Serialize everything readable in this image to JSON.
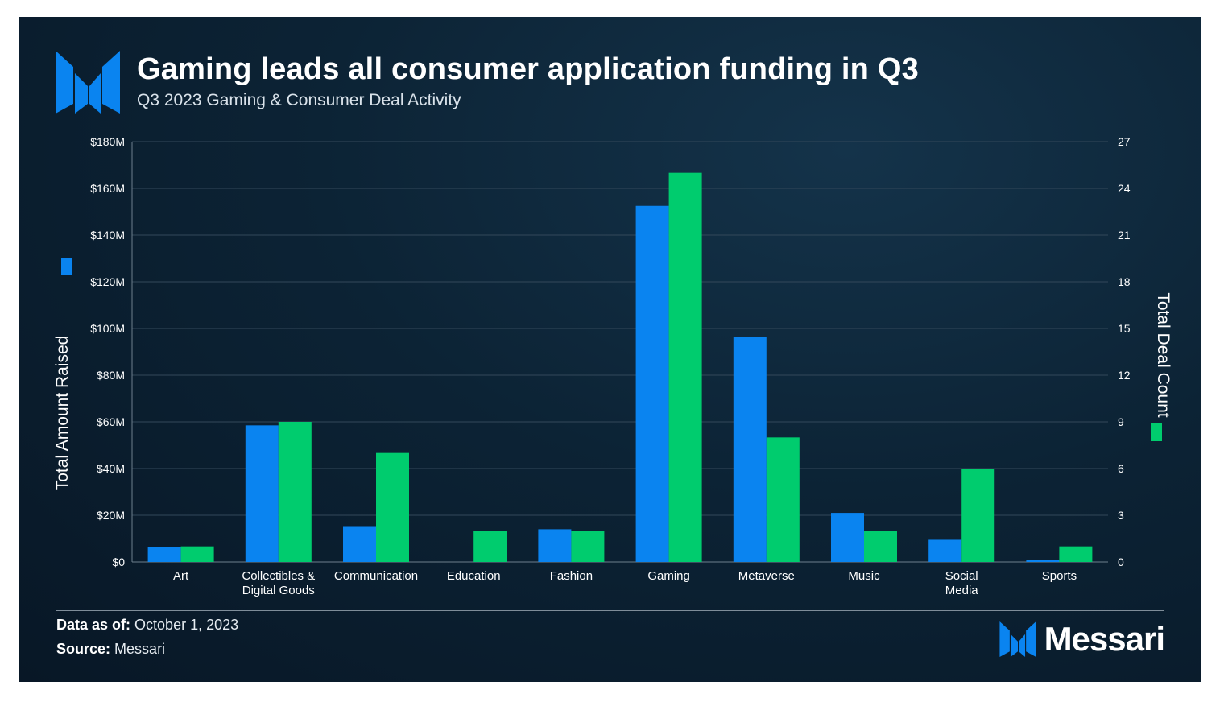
{
  "title": "Gaming leads all consumer application funding in Q3",
  "subtitle": "Q3 2023 Gaming & Consumer Deal Activity",
  "footer": {
    "data_as_of_label": "Data as of:",
    "data_as_of_value": "October 1, 2023",
    "source_label": "Source:",
    "source_value": "Messari"
  },
  "brand": {
    "name": "Messari",
    "logo_icon": "messari-logo-icon"
  },
  "colors": {
    "amount": "#0a84f0",
    "count": "#00cc6e",
    "text": "#ffffff",
    "grid": "#3a4d5c"
  },
  "chart_data": {
    "type": "bar",
    "categories": [
      [
        "Art"
      ],
      [
        "Collectibles &",
        "Digital Goods"
      ],
      [
        "Communication"
      ],
      [
        "Education"
      ],
      [
        "Fashion"
      ],
      [
        "Gaming"
      ],
      [
        "Metaverse"
      ],
      [
        "Music"
      ],
      [
        "Social",
        "Media"
      ],
      [
        "Sports"
      ]
    ],
    "series": [
      {
        "name": "Total Amount Raised",
        "axis": "left",
        "color": "#0a84f0",
        "values": [
          6.5,
          58.5,
          15,
          0,
          14,
          152.5,
          96.5,
          21,
          9.5,
          1
        ]
      },
      {
        "name": "Total Deal Count",
        "axis": "right",
        "color": "#00cc6e",
        "values": [
          1,
          9,
          7,
          2,
          2,
          25,
          8,
          2,
          6,
          1
        ]
      }
    ],
    "ylabel": "Total Amount Raised",
    "y2label": "Total Deal Count",
    "ylim": [
      0,
      180
    ],
    "y2lim": [
      0,
      27
    ],
    "yticks": [
      "$0",
      "$20M",
      "$40M",
      "$60M",
      "$80M",
      "$100M",
      "$120M",
      "$140M",
      "$160M",
      "$180M"
    ],
    "y2ticks": [
      "0",
      "3",
      "6",
      "9",
      "12",
      "15",
      "18",
      "21",
      "24",
      "27"
    ],
    "grid": true
  }
}
